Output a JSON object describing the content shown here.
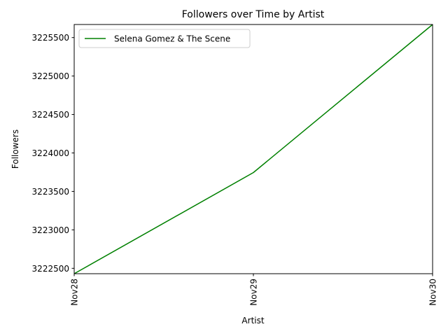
{
  "chart_data": {
    "type": "line",
    "title": "Followers over Time by Artist",
    "xlabel": "Artist",
    "ylabel": "Followers",
    "categories": [
      "Nov28",
      "Nov29",
      "Nov30"
    ],
    "series": [
      {
        "name": "Selena Gomez & The Scene",
        "values": [
          3222430,
          3223745,
          3225670
        ],
        "color": "#008000"
      }
    ],
    "yticks": [
      3222500,
      3223000,
      3223500,
      3224000,
      3224500,
      3225000,
      3225500
    ],
    "ylim": [
      3222430,
      3225670
    ],
    "grid": false,
    "legend_position": "top-left"
  }
}
